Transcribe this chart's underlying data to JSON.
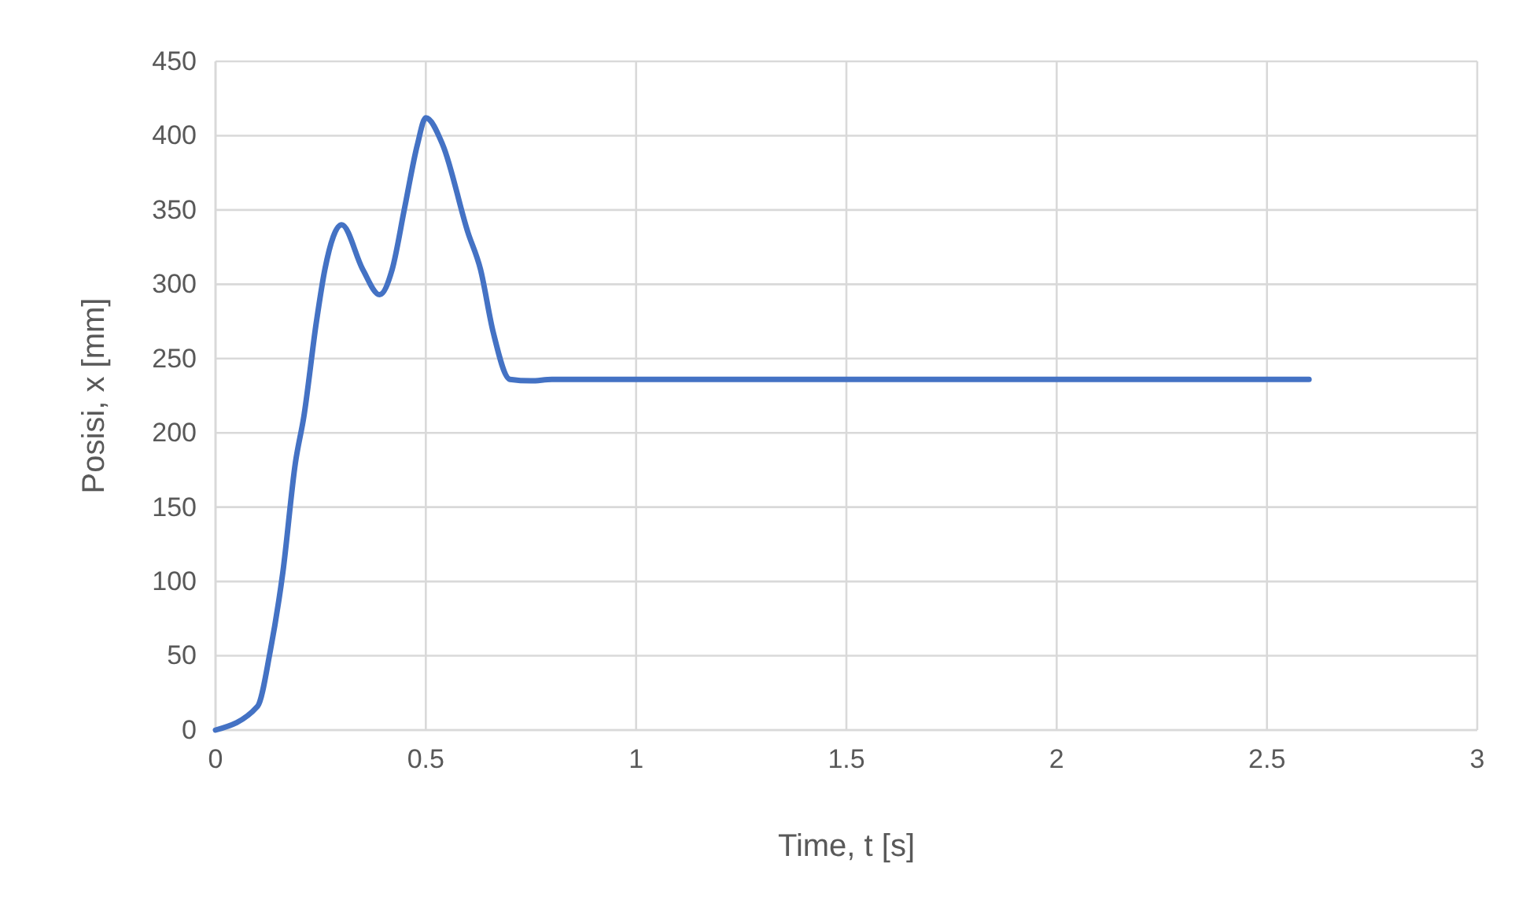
{
  "chart_data": {
    "type": "line",
    "xlabel": "Time, t [s]",
    "ylabel": "Posisi, x [mm]",
    "xlim": [
      0,
      3
    ],
    "xticks": [
      0,
      0.5,
      1,
      1.5,
      2,
      2.5,
      3
    ],
    "ylim": [
      0,
      450
    ],
    "yticks": [
      0,
      50,
      100,
      150,
      200,
      250,
      300,
      350,
      400,
      450
    ],
    "grid": true,
    "marker": "none",
    "line_style": "solid",
    "series": [
      {
        "color": "#4472c4",
        "x": [
          0,
          0.1,
          0.13,
          0.16,
          0.19,
          0.21,
          0.24,
          0.26,
          0.3,
          0.35,
          0.39,
          0.42,
          0.45,
          0.48,
          0.5,
          0.54,
          0.6,
          0.63,
          0.66,
          0.7,
          0.75,
          0.8,
          1,
          1.5,
          2,
          2.6
        ],
        "values": [
          0,
          16,
          53,
          106,
          180,
          211,
          275,
          310,
          340,
          310,
          293,
          310,
          352,
          394,
          412,
          394,
          335,
          310,
          268,
          236,
          235,
          236,
          236,
          236,
          236,
          236
        ]
      }
    ]
  }
}
